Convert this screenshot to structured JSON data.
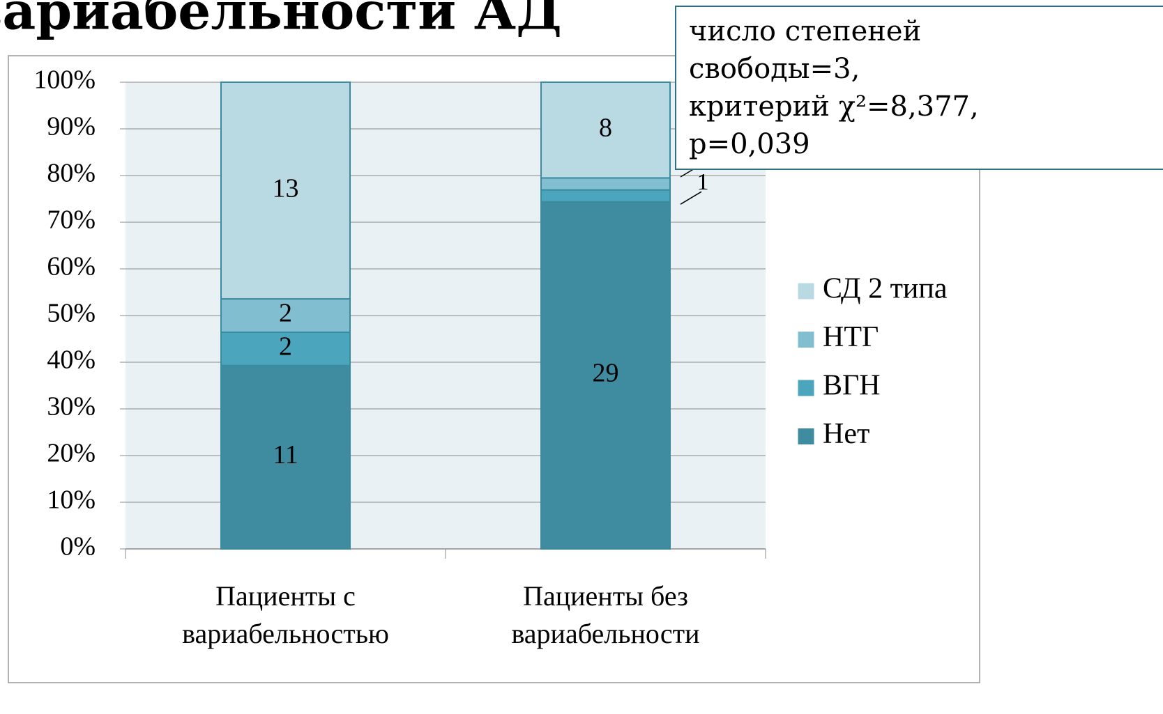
{
  "chart_data": {
    "type": "bar",
    "stacked": "percent",
    "title": "вариабельности АД",
    "annotation": [
      "число степеней",
      "свободы=3,",
      "критерий χ²=8,377,",
      "p=0,039"
    ],
    "categories": [
      "Пациенты с вариабельностью",
      "Пациенты без вариабельности"
    ],
    "series": [
      {
        "name": "Нет",
        "color": "#3f8ca0",
        "values": [
          11,
          29
        ]
      },
      {
        "name": "ВГН",
        "color": "#4ba6bd",
        "values": [
          2,
          1
        ]
      },
      {
        "name": "НТГ",
        "color": "#80bed0",
        "values": [
          2,
          1
        ]
      },
      {
        "name": "СД 2 типа",
        "color": "#b9d9e3",
        "values": [
          13,
          8
        ]
      }
    ],
    "ylim": [
      0,
      100
    ],
    "yticks": [
      {
        "value": 0,
        "label": "0%"
      },
      {
        "value": 10,
        "label": "10%"
      },
      {
        "value": 20,
        "label": "20%"
      },
      {
        "value": 30,
        "label": "30%"
      },
      {
        "value": 40,
        "label": "40%"
      },
      {
        "value": 50,
        "label": "50%"
      },
      {
        "value": 60,
        "label": "60%"
      },
      {
        "value": 70,
        "label": "70%"
      },
      {
        "value": 80,
        "label": "80%"
      },
      {
        "value": 90,
        "label": "90%"
      },
      {
        "value": 100,
        "label": "100%"
      }
    ],
    "grid": true,
    "legend": "right"
  }
}
